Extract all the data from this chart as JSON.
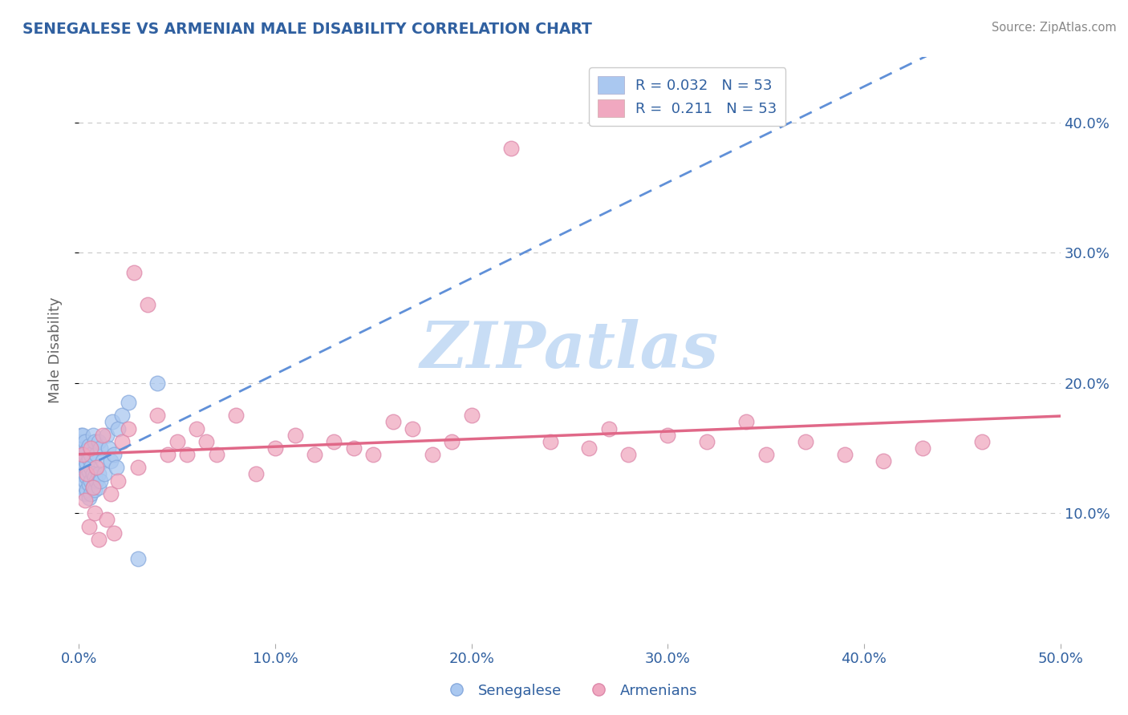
{
  "title": "SENEGALESE VS ARMENIAN MALE DISABILITY CORRELATION CHART",
  "source_text": "Source: ZipAtlas.com",
  "ylabel": "Male Disability",
  "xlim": [
    0.0,
    0.5
  ],
  "ylim": [
    0.0,
    0.45
  ],
  "xtick_labels": [
    "0.0%",
    "10.0%",
    "20.0%",
    "30.0%",
    "40.0%",
    "50.0%"
  ],
  "xtick_vals": [
    0.0,
    0.1,
    0.2,
    0.3,
    0.4,
    0.5
  ],
  "ytick_labels": [
    "10.0%",
    "20.0%",
    "30.0%",
    "40.0%"
  ],
  "ytick_vals": [
    0.1,
    0.2,
    0.3,
    0.4
  ],
  "title_color": "#3060a0",
  "source_color": "#888888",
  "axis_label_color": "#666666",
  "tick_color": "#3060a0",
  "legend_r1": "R = 0.032   N = 53",
  "legend_r2": "R =  0.211   N = 53",
  "senegalese_color": "#aac8f0",
  "armenian_color": "#f0a8c0",
  "senegalese_edge_color": "#88aadd",
  "armenian_edge_color": "#dd88aa",
  "senegalese_line_color": "#6090d8",
  "armenian_line_color": "#e06888",
  "background_color": "#ffffff",
  "grid_color": "#c8c8c8",
  "watermark_color": "#c8ddf5",
  "senegalese_x": [
    0.001,
    0.001,
    0.001,
    0.001,
    0.002,
    0.002,
    0.002,
    0.002,
    0.002,
    0.003,
    0.003,
    0.003,
    0.003,
    0.003,
    0.004,
    0.004,
    0.004,
    0.004,
    0.005,
    0.005,
    0.005,
    0.005,
    0.005,
    0.006,
    0.006,
    0.006,
    0.006,
    0.007,
    0.007,
    0.007,
    0.008,
    0.008,
    0.008,
    0.009,
    0.009,
    0.01,
    0.01,
    0.01,
    0.011,
    0.011,
    0.012,
    0.013,
    0.014,
    0.015,
    0.016,
    0.017,
    0.018,
    0.019,
    0.02,
    0.022,
    0.025,
    0.03,
    0.04
  ],
  "senegalese_y": [
    0.135,
    0.145,
    0.155,
    0.16,
    0.12,
    0.13,
    0.14,
    0.15,
    0.16,
    0.115,
    0.125,
    0.135,
    0.145,
    0.155,
    0.118,
    0.128,
    0.138,
    0.148,
    0.112,
    0.122,
    0.132,
    0.142,
    0.152,
    0.115,
    0.125,
    0.135,
    0.145,
    0.12,
    0.13,
    0.16,
    0.118,
    0.128,
    0.155,
    0.125,
    0.145,
    0.12,
    0.13,
    0.155,
    0.125,
    0.15,
    0.14,
    0.13,
    0.16,
    0.15,
    0.14,
    0.17,
    0.145,
    0.135,
    0.165,
    0.175,
    0.185,
    0.065,
    0.2
  ],
  "armenian_x": [
    0.002,
    0.003,
    0.004,
    0.005,
    0.006,
    0.007,
    0.008,
    0.009,
    0.01,
    0.012,
    0.014,
    0.016,
    0.018,
    0.02,
    0.022,
    0.025,
    0.028,
    0.03,
    0.035,
    0.04,
    0.045,
    0.05,
    0.055,
    0.06,
    0.065,
    0.07,
    0.08,
    0.09,
    0.1,
    0.11,
    0.12,
    0.13,
    0.14,
    0.15,
    0.16,
    0.17,
    0.18,
    0.19,
    0.2,
    0.22,
    0.24,
    0.26,
    0.27,
    0.28,
    0.3,
    0.32,
    0.34,
    0.35,
    0.37,
    0.39,
    0.41,
    0.43,
    0.46
  ],
  "armenian_y": [
    0.145,
    0.11,
    0.13,
    0.09,
    0.15,
    0.12,
    0.1,
    0.135,
    0.08,
    0.16,
    0.095,
    0.115,
    0.085,
    0.125,
    0.155,
    0.165,
    0.285,
    0.135,
    0.26,
    0.175,
    0.145,
    0.155,
    0.145,
    0.165,
    0.155,
    0.145,
    0.175,
    0.13,
    0.15,
    0.16,
    0.145,
    0.155,
    0.15,
    0.145,
    0.17,
    0.165,
    0.145,
    0.155,
    0.175,
    0.38,
    0.155,
    0.15,
    0.165,
    0.145,
    0.16,
    0.155,
    0.17,
    0.145,
    0.155,
    0.145,
    0.14,
    0.15,
    0.155
  ]
}
